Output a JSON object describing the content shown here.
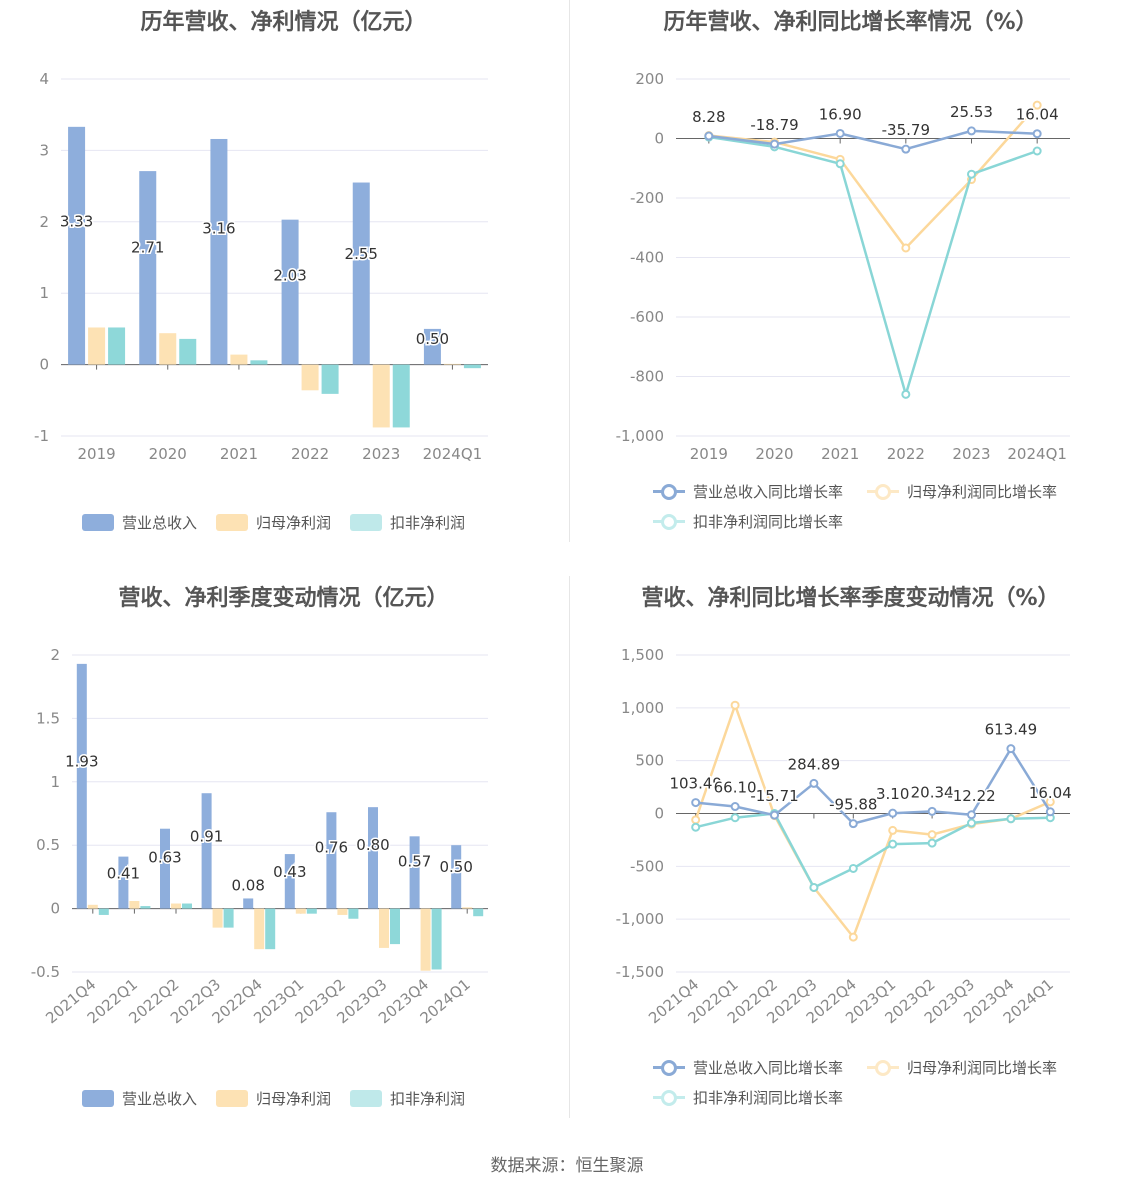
{
  "colors": {
    "revenue": "#8eaedc",
    "net_profit": "#fde2b4",
    "deducted_profit": "#8ed8d9",
    "revenue_line": "#8aaad6",
    "net_profit_line": "#fcd89b",
    "deducted_line": "#89d6d6",
    "grid": "#e6e6f2",
    "axis": "#666666",
    "tick_text": "#888888",
    "label_text": "#333333"
  },
  "legend": {
    "bar": [
      "营业总收入",
      "归母净利润",
      "扣非净利润"
    ],
    "line": [
      "营业总收入同比增长率",
      "归母净利润同比增长率",
      "扣非净利润同比增长率"
    ]
  },
  "source_text": "数据来源：恒生聚源",
  "chart_data": [
    {
      "type": "bar",
      "title": "历年营收、净利情况（亿元）",
      "categories": [
        "2019",
        "2020",
        "2021",
        "2022",
        "2023",
        "2024Q1"
      ],
      "ylim": [
        -1,
        4
      ],
      "yticks": [
        -1,
        0,
        1,
        2,
        3,
        4
      ],
      "series": [
        {
          "name": "营业总收入",
          "values": [
            3.33,
            2.71,
            3.16,
            2.03,
            2.55,
            0.5
          ],
          "labels": [
            "3.33",
            "2.71",
            "3.16",
            "2.03",
            "2.55",
            "0.50"
          ]
        },
        {
          "name": "归母净利润",
          "values": [
            0.52,
            0.44,
            0.14,
            -0.36,
            -0.88,
            0.01
          ]
        },
        {
          "name": "扣非净利润",
          "values": [
            0.52,
            0.36,
            0.06,
            -0.41,
            -0.88,
            -0.05
          ]
        }
      ],
      "grid": true,
      "legend_position": "bottom"
    },
    {
      "type": "line",
      "title": "历年营收、净利同比增长率情况（%）",
      "categories": [
        "2019",
        "2020",
        "2021",
        "2022",
        "2023",
        "2024Q1"
      ],
      "ylim": [
        -1000,
        200
      ],
      "yticks": [
        -1000,
        -800,
        -600,
        -400,
        -200,
        0,
        200
      ],
      "ytick_labels": [
        "-1,000",
        "-800",
        "-600",
        "-400",
        "-200",
        "0",
        "200"
      ],
      "series": [
        {
          "name": "营业总收入同比增长率",
          "values": [
            8.28,
            -18.79,
            16.9,
            -35.79,
            25.53,
            16.04
          ],
          "labels": [
            "8.28",
            "-18.79",
            "16.90",
            "-35.79",
            "25.53",
            "16.04"
          ]
        },
        {
          "name": "归母净利润同比增长率",
          "values": [
            10,
            -12,
            -70,
            -368,
            -138,
            112
          ]
        },
        {
          "name": "扣非净利润同比增长率",
          "values": [
            5,
            -28,
            -85,
            -860,
            -120,
            -42
          ]
        }
      ],
      "grid": true,
      "legend_position": "bottom"
    },
    {
      "type": "bar",
      "title": "营收、净利季度变动情况（亿元）",
      "categories": [
        "2021Q4",
        "2022Q1",
        "2022Q2",
        "2022Q3",
        "2022Q4",
        "2023Q1",
        "2023Q2",
        "2023Q3",
        "2023Q4",
        "2024Q1"
      ],
      "ylim": [
        -0.5,
        2
      ],
      "yticks": [
        -0.5,
        0,
        0.5,
        1,
        1.5,
        2
      ],
      "series": [
        {
          "name": "营业总收入",
          "values": [
            1.93,
            0.41,
            0.63,
            0.91,
            0.08,
            0.43,
            0.76,
            0.8,
            0.57,
            0.5
          ],
          "labels": [
            "1.93",
            "0.41",
            "0.63",
            "0.91",
            "0.08",
            "0.43",
            "0.76",
            "0.80",
            "0.57",
            "0.50"
          ]
        },
        {
          "name": "归母净利润",
          "values": [
            0.03,
            0.06,
            0.04,
            -0.15,
            -0.32,
            -0.04,
            -0.05,
            -0.31,
            -0.49,
            0.01
          ]
        },
        {
          "name": "扣非净利润",
          "values": [
            -0.05,
            0.02,
            0.04,
            -0.15,
            -0.32,
            -0.04,
            -0.08,
            -0.28,
            -0.48,
            -0.06
          ]
        }
      ],
      "grid": true,
      "legend_position": "bottom"
    },
    {
      "type": "line",
      "title": "营收、净利同比增长率季度变动情况（%）",
      "categories": [
        "2021Q4",
        "2022Q1",
        "2022Q2",
        "2022Q3",
        "2022Q4",
        "2023Q1",
        "2023Q2",
        "2023Q3",
        "2023Q4",
        "2024Q1"
      ],
      "ylim": [
        -1500,
        1500
      ],
      "yticks": [
        -1500,
        -1000,
        -500,
        0,
        500,
        1000,
        1500
      ],
      "ytick_labels": [
        "-1,500",
        "-1,000",
        "-500",
        "0",
        "500",
        "1,000",
        "1,500"
      ],
      "series": [
        {
          "name": "营业总收入同比增长率",
          "values": [
            103.49,
            66.1,
            -15.71,
            284.89,
            -95.88,
            3.1,
            20.34,
            -12.22,
            613.49,
            16.04
          ],
          "labels": [
            "103.49",
            "66.10",
            "-15.71",
            "284.89",
            "-95.88",
            "3.10",
            "20.34",
            "-12.22",
            "613.49",
            "16.04"
          ]
        },
        {
          "name": "归母净利润同比增长率",
          "values": [
            -60,
            1025,
            -20,
            -700,
            -1170,
            -160,
            -200,
            -100,
            -50,
            110
          ]
        },
        {
          "name": "扣非净利润同比增长率",
          "values": [
            -130,
            -40,
            0,
            -700,
            -520,
            -290,
            -280,
            -90,
            -50,
            -40
          ]
        }
      ],
      "grid": true,
      "legend_position": "bottom"
    }
  ]
}
